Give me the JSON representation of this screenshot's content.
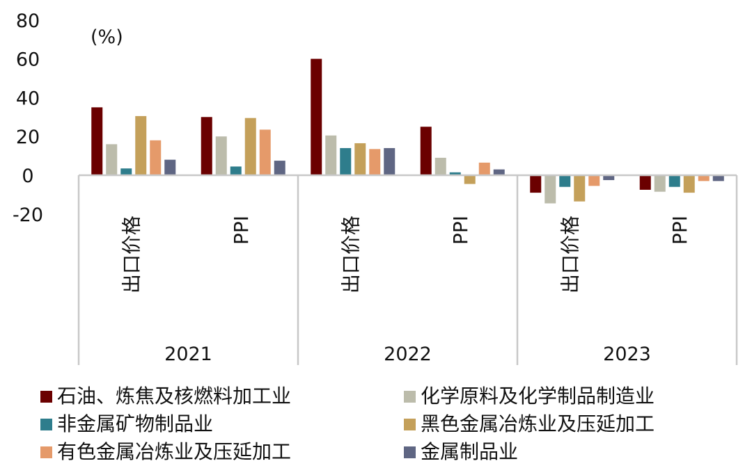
{
  "chart_data": {
    "type": "bar",
    "unit_label": "(%)",
    "y_ticks": [
      80,
      60,
      40,
      20,
      0,
      -20
    ],
    "ylim": [
      -20,
      80
    ],
    "years": [
      "2021",
      "2022",
      "2023"
    ],
    "categories": [
      {
        "year": "2021",
        "label": "出口价格"
      },
      {
        "year": "2021",
        "label": "PPI"
      },
      {
        "year": "2022",
        "label": "出口价格"
      },
      {
        "year": "2022",
        "label": "PPI"
      },
      {
        "year": "2023",
        "label": "出口价格"
      },
      {
        "year": "2023",
        "label": "PPI"
      }
    ],
    "series": [
      {
        "name": "石油、炼焦及核燃料加工业",
        "color": "#6b0000",
        "values": [
          35,
          30,
          60,
          25,
          -9,
          -7.5
        ]
      },
      {
        "name": "化学原料及化学制品制造业",
        "color": "#bcbcab",
        "values": [
          16,
          20,
          20.5,
          9,
          -14.5,
          -8.5
        ]
      },
      {
        "name": "非金属矿物制品业",
        "color": "#2e7d8c",
        "values": [
          3.5,
          4.5,
          14,
          1.5,
          -6,
          -6
        ]
      },
      {
        "name": "黑色金属冶炼业及压延加工",
        "color": "#c4a05a",
        "values": [
          30.5,
          29.5,
          16.5,
          -4.5,
          -13.5,
          -9
        ]
      },
      {
        "name": "有色金属冶炼业及压延加工",
        "color": "#e59a6a",
        "values": [
          18,
          23.5,
          13.5,
          6.5,
          -5.5,
          -3
        ]
      },
      {
        "name": "金属制品业",
        "color": "#5f6683",
        "values": [
          8,
          7.5,
          14,
          3,
          -2.5,
          -3
        ]
      }
    ],
    "grid": false,
    "legend_position": "bottom"
  }
}
